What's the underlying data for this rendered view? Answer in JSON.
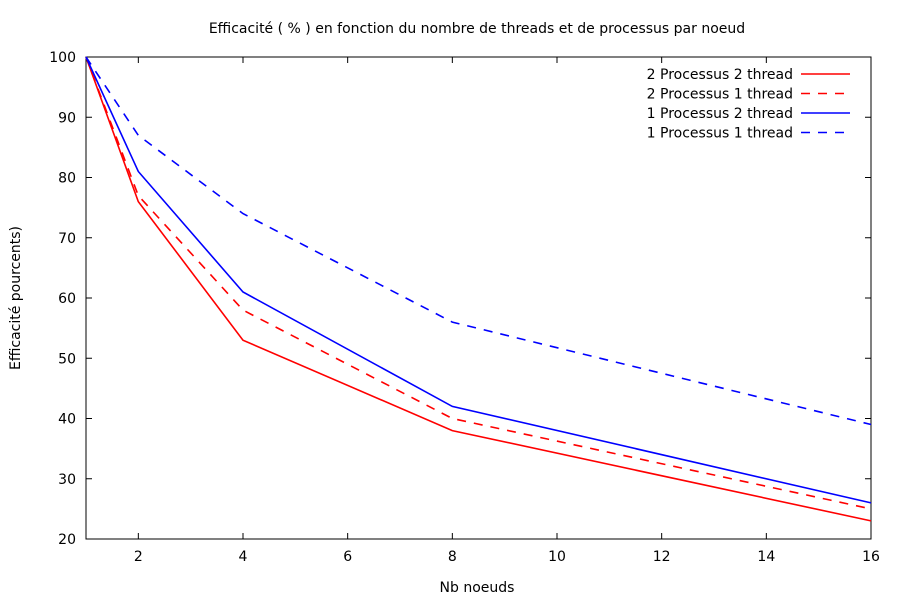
{
  "chart_data": {
    "type": "line",
    "title": "Efficacité ( % ) en fonction du nombre de threads et de processus par noeud",
    "xlabel": "Nb noeuds",
    "ylabel": "Efficacité pourcents)",
    "xlim": [
      1,
      16
    ],
    "ylim": [
      20,
      100
    ],
    "x_ticks": [
      2,
      4,
      6,
      8,
      10,
      12,
      14,
      16
    ],
    "y_ticks": [
      20,
      30,
      40,
      50,
      60,
      70,
      80,
      90,
      100
    ],
    "grid": false,
    "legend_position": "top-right",
    "x": [
      1,
      2,
      4,
      8,
      16
    ],
    "series": [
      {
        "name": "2 Processus 2 thread",
        "color": "#ff0000",
        "dash": "solid",
        "values": [
          100,
          76,
          53,
          38,
          23
        ]
      },
      {
        "name": "2 Processus 1 thread",
        "color": "#ff0000",
        "dash": "dashed",
        "values": [
          100,
          77,
          58,
          40,
          25
        ]
      },
      {
        "name": "1 Processus 2 thread",
        "color": "#0000ff",
        "dash": "solid",
        "values": [
          100,
          81,
          61,
          42,
          26
        ]
      },
      {
        "name": "1 Processus 1 thread",
        "color": "#0000ff",
        "dash": "dashed",
        "values": [
          100,
          87,
          74,
          56,
          39
        ]
      }
    ]
  }
}
